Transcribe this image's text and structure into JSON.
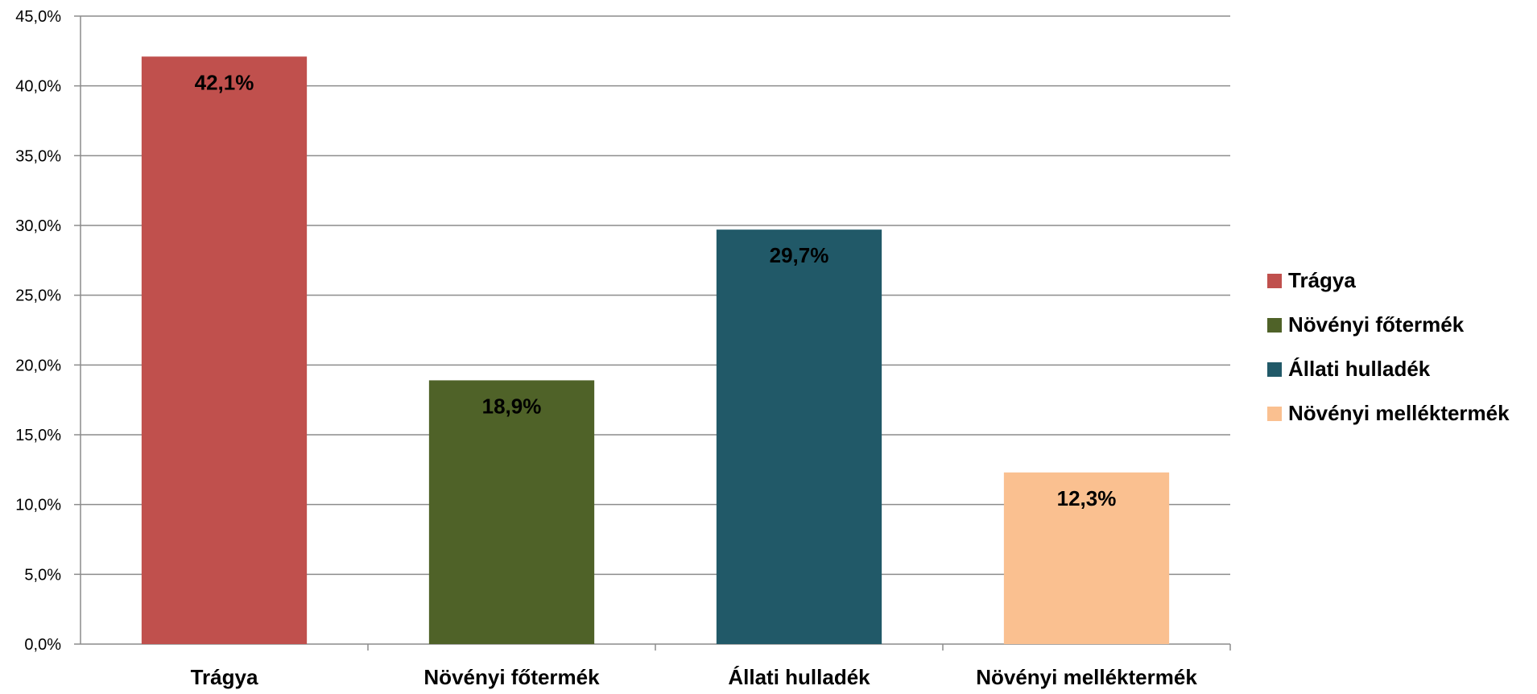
{
  "chart_data": {
    "type": "bar",
    "title": "",
    "xlabel": "",
    "ylabel": "",
    "categories": [
      "Trágya",
      "Növényi főtermék",
      "Állati hulladék",
      "Növényi melléktermék"
    ],
    "values": [
      42.1,
      18.9,
      29.7,
      12.3
    ],
    "data_labels": [
      "42,1%",
      "18,9%",
      "29,7%",
      "12,3%"
    ],
    "colors": [
      "#c0504d",
      "#4f6228",
      "#215968",
      "#fac090"
    ],
    "ylim": [
      0,
      45
    ],
    "y_ticks": [
      0,
      5,
      10,
      15,
      20,
      25,
      30,
      35,
      40,
      45
    ],
    "y_tick_labels": [
      "0,0%",
      "5,0%",
      "10,0%",
      "15,0%",
      "20,0%",
      "25,0%",
      "30,0%",
      "35,0%",
      "40,0%",
      "45,0%"
    ],
    "grid": true,
    "grid_color": "#8c8c8c",
    "legend": {
      "position": "right",
      "entries": [
        "Trágya",
        "Növényi főtermék",
        "Állati hulladék",
        "Növényi melléktermék"
      ]
    }
  }
}
